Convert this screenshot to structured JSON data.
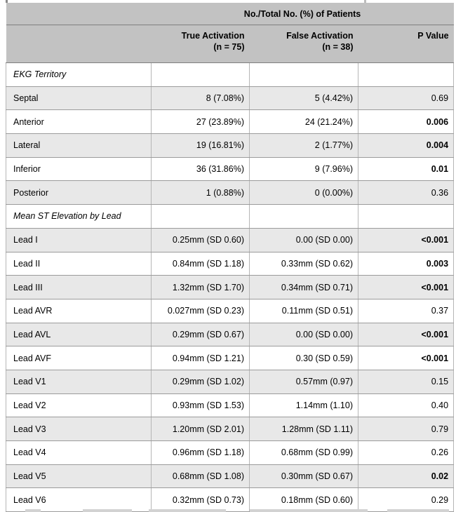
{
  "table": {
    "spanner": "No./Total No. (%) of Patients",
    "columns": [
      {
        "label": "",
        "sub": ""
      },
      {
        "label": "True Activation",
        "sub": "(n = 75)"
      },
      {
        "label": "False Activation",
        "sub": "(n = 38)"
      },
      {
        "label": "P Value",
        "sub": ""
      }
    ],
    "rows": [
      {
        "label": "EKG Territory",
        "type": "section",
        "true": "",
        "false": "",
        "p": "",
        "p_bold": false
      },
      {
        "label": "Septal",
        "type": "data",
        "true": "8 (7.08%)",
        "false": "5 (4.42%)",
        "p": "0.69",
        "p_bold": false
      },
      {
        "label": "Anterior",
        "type": "data",
        "true": "27 (23.89%)",
        "false": "24 (21.24%)",
        "p": "0.006",
        "p_bold": true
      },
      {
        "label": "Lateral",
        "type": "data",
        "true": "19 (16.81%)",
        "false": "2 (1.77%)",
        "p": "0.004",
        "p_bold": true
      },
      {
        "label": "Inferior",
        "type": "data",
        "true": "36 (31.86%)",
        "false": "9 (7.96%)",
        "p": "0.01",
        "p_bold": true
      },
      {
        "label": "Posterior",
        "type": "data",
        "true": "1 (0.88%)",
        "false": "0 (0.00%)",
        "p": "0.36",
        "p_bold": false
      },
      {
        "label": "Mean ST Elevation by Lead",
        "type": "section",
        "true": "",
        "false": "",
        "p": "",
        "p_bold": false
      },
      {
        "label": "Lead I",
        "type": "data",
        "true": "0.25mm (SD 0.60)",
        "false": "0.00 (SD 0.00)",
        "p": "<0.001",
        "p_bold": true
      },
      {
        "label": "Lead II",
        "type": "data",
        "true": "0.84mm (SD 1.18)",
        "false": "0.33mm (SD 0.62)",
        "p": "0.003",
        "p_bold": true
      },
      {
        "label": "Lead III",
        "type": "data",
        "true": "1.32mm (SD 1.70)",
        "false": "0.34mm (SD 0.71)",
        "p": "<0.001",
        "p_bold": true
      },
      {
        "label": "Lead AVR",
        "type": "data",
        "true": "0.027mm (SD 0.23)",
        "false": "0.11mm (SD 0.51)",
        "p": "0.37",
        "p_bold": false
      },
      {
        "label": "Lead AVL",
        "type": "data",
        "true": "0.29mm (SD 0.67)",
        "false": "0.00 (SD 0.00)",
        "p": "<0.001",
        "p_bold": true
      },
      {
        "label": "Lead AVF",
        "type": "data",
        "true": "0.94mm (SD 1.21)",
        "false": "0.30 (SD 0.59)",
        "p": "<0.001",
        "p_bold": true
      },
      {
        "label": "Lead V1",
        "type": "data",
        "true": "0.29mm (SD 1.02)",
        "false": "0.57mm (0.97)",
        "p": "0.15",
        "p_bold": false
      },
      {
        "label": "Lead V2",
        "type": "data",
        "true": "0.93mm (SD 1.53)",
        "false": "1.14mm (1.10)",
        "p": "0.40",
        "p_bold": false
      },
      {
        "label": "Lead V3",
        "type": "data",
        "true": "1.20mm (SD 2.01)",
        "false": "1.28mm (SD 1.11)",
        "p": "0.79",
        "p_bold": false
      },
      {
        "label": "Lead V4",
        "type": "data",
        "true": "0.96mm (SD 1.18)",
        "false": "0.68mm (SD 0.99)",
        "p": "0.26",
        "p_bold": false
      },
      {
        "label": "Lead V5",
        "type": "data",
        "true": "0.68mm (SD 1.08)",
        "false": "0.30mm (SD 0.67)",
        "p": "0.02",
        "p_bold": true
      },
      {
        "label": "Lead V6",
        "type": "data",
        "true": "0.32mm (SD 0.73)",
        "false": "0.18mm (SD 0.60)",
        "p": "0.29",
        "p_bold": false
      }
    ],
    "colors": {
      "header_bg": "#c2c2c2",
      "row_alt_bg": "#e8e8e8",
      "row_bg": "#ffffff",
      "header_border": "#7f7f7f",
      "row_border": "#9b9b9b",
      "column_border": "#b6b6b6",
      "text": "#000000"
    }
  }
}
